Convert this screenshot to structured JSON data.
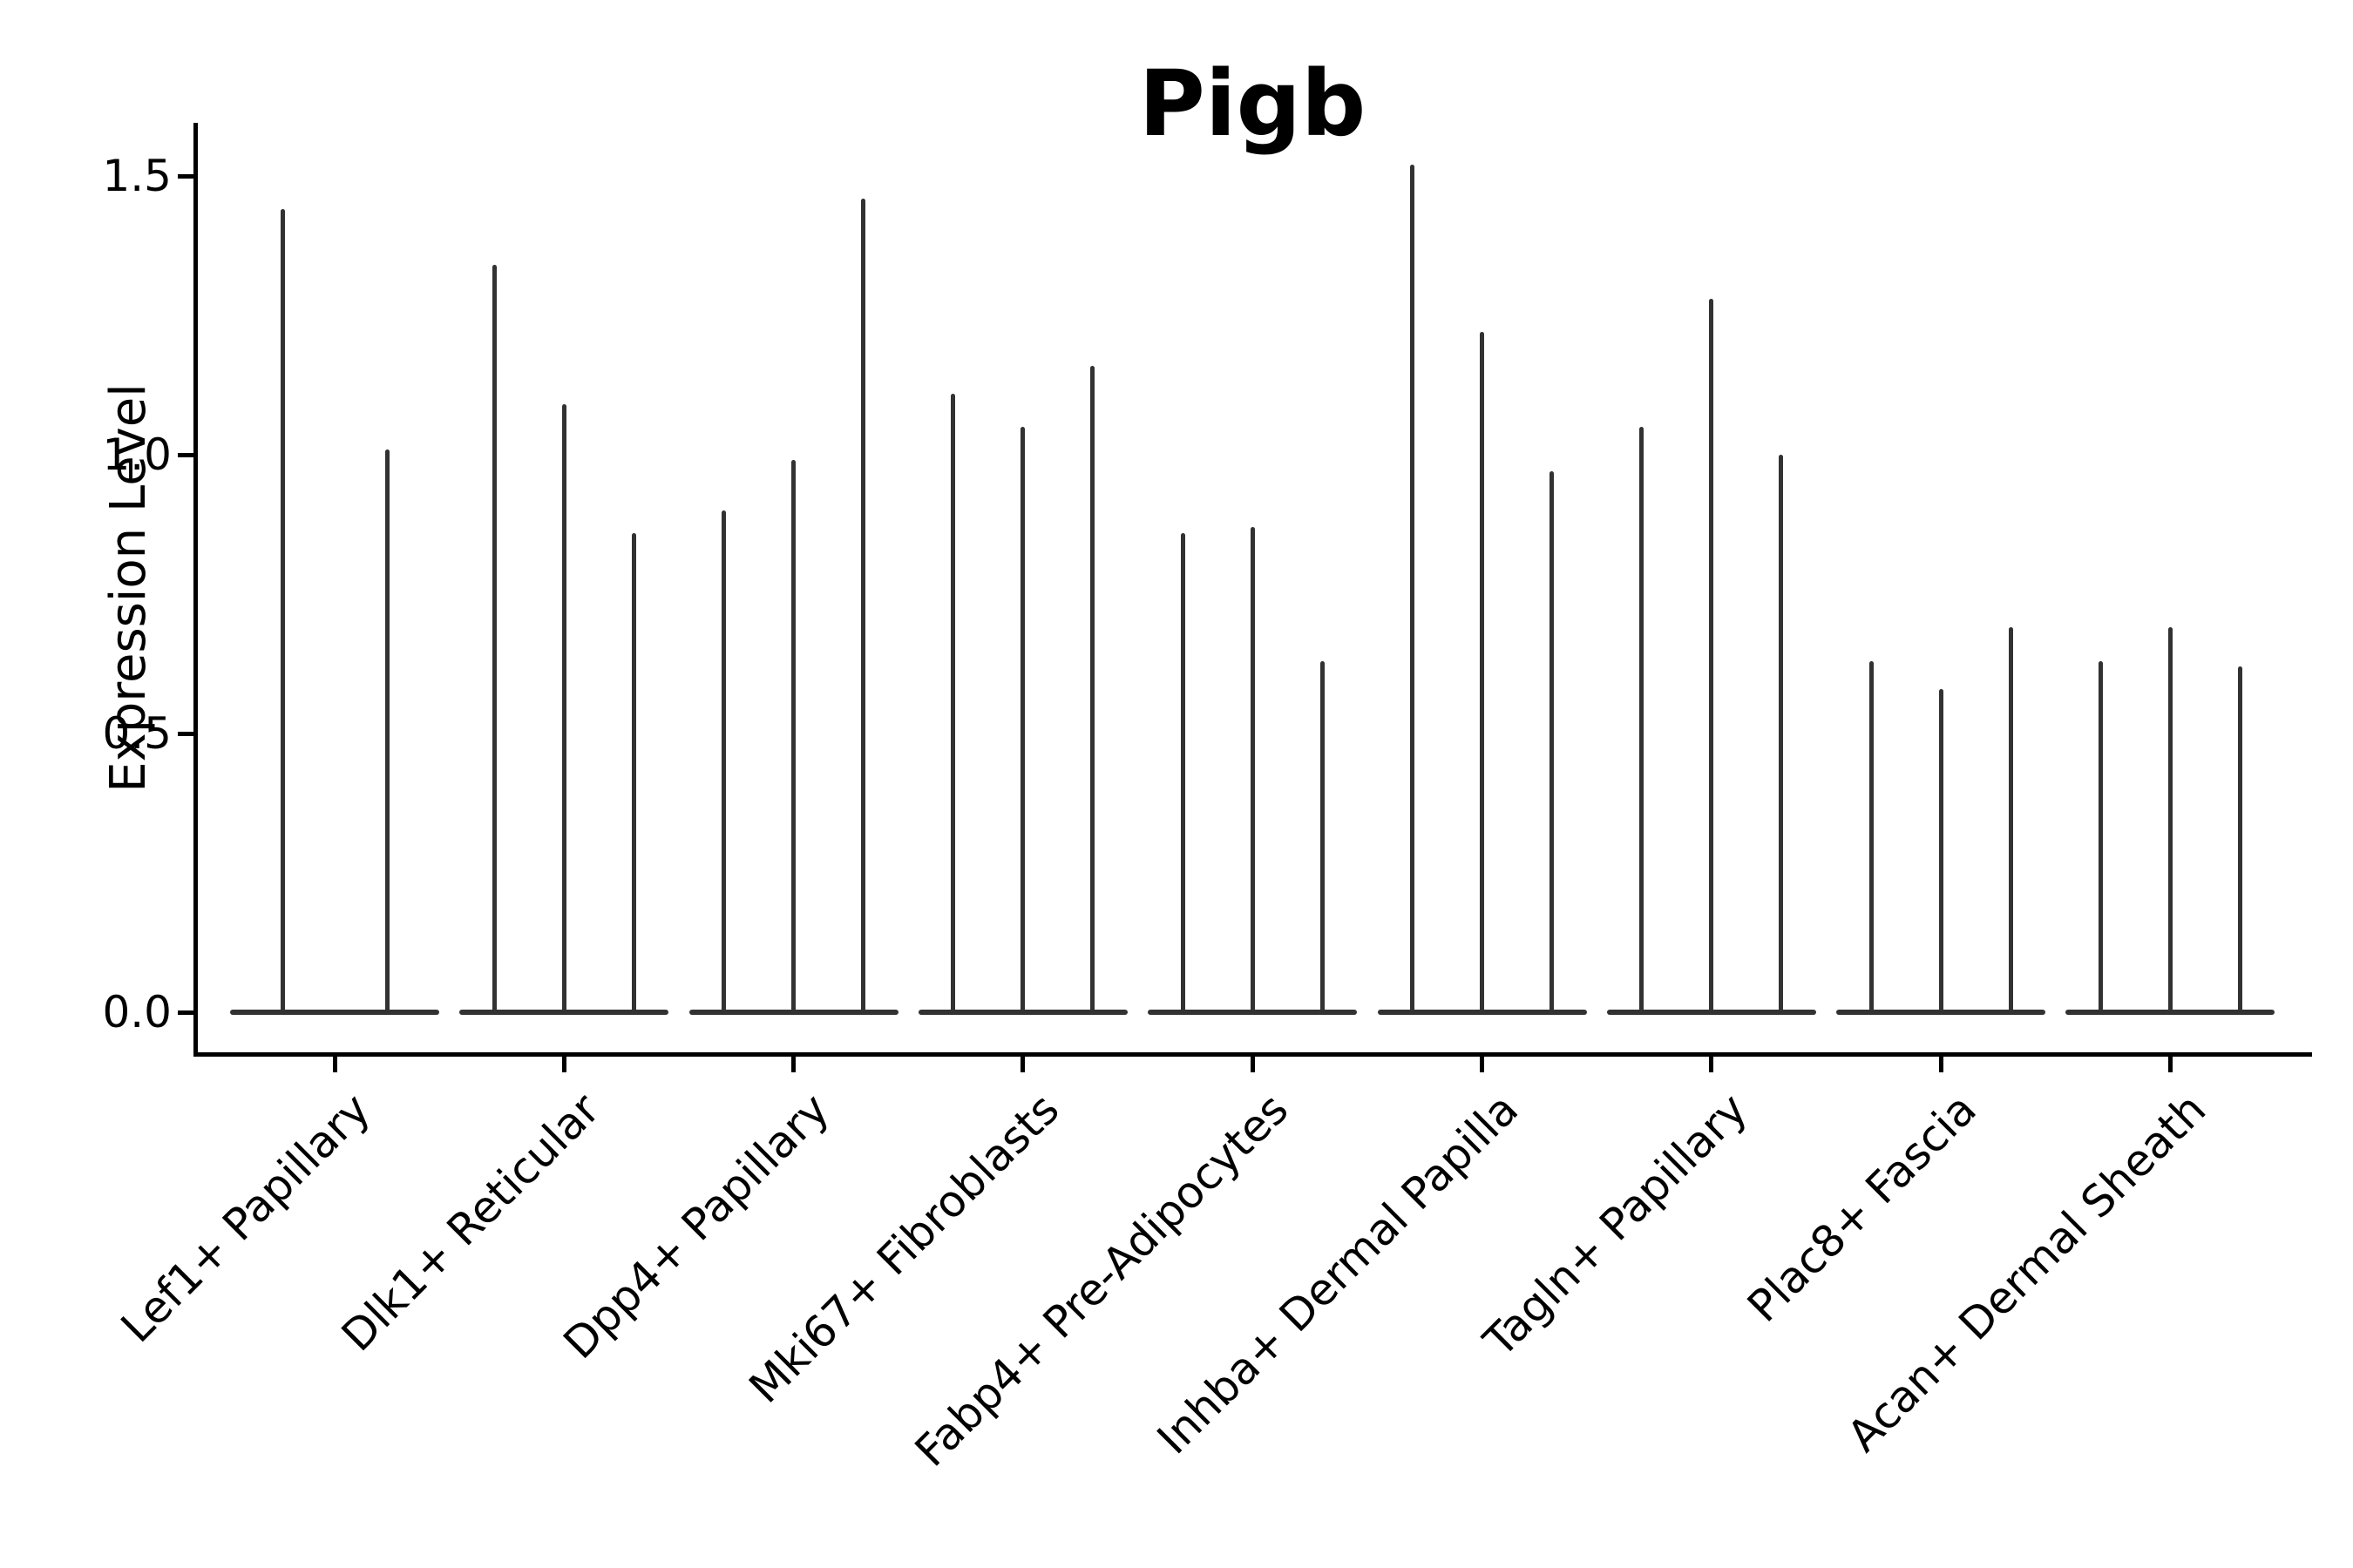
{
  "title": "Pigb",
  "ylabel": "Expression Level",
  "chart_data": {
    "type": "violin",
    "title": "Pigb",
    "xlabel": "",
    "ylabel": "Expression Level",
    "ylim": [
      -0.07,
      1.6
    ],
    "yticks": [
      0.0,
      0.5,
      1.0,
      1.5
    ],
    "ytick_labels": [
      "0.0",
      "0.5",
      "1.0",
      "1.5"
    ],
    "grid": false,
    "legend_position": "none",
    "background_color": "#ffffff",
    "violin_color": "#323232",
    "axis_color": "#000000",
    "categories": [
      "Lef1+ Papillary",
      "Dlk1+ Reticular",
      "Dpp4+ Papillary",
      "Mki67+ Fibroblasts",
      "Fabp4+ Pre-Adipocytes",
      "Inhba+ Dermal Papilla",
      "Tagln+ Papillary",
      "Plac8+ Fascia",
      "Acan+ Dermal Sheath"
    ],
    "groups": [
      {
        "label": "Lef1+ Papillary",
        "violin_max_values": [
          1.44,
          1.01
        ]
      },
      {
        "label": "Dlk1+ Reticular",
        "violin_max_values": [
          1.34,
          1.09,
          0.86
        ]
      },
      {
        "label": "Dpp4+ Papillary",
        "violin_max_values": [
          0.9,
          0.99,
          1.46
        ]
      },
      {
        "label": "Mki67+ Fibroblasts",
        "violin_max_values": [
          1.11,
          1.05,
          1.16
        ]
      },
      {
        "label": "Fabp4+ Pre-Adipocytes",
        "violin_max_values": [
          0.86,
          0.87,
          0.63
        ]
      },
      {
        "label": "Inhba+ Dermal Papilla",
        "violin_max_values": [
          1.52,
          1.22,
          0.97
        ]
      },
      {
        "label": "Tagln+ Papillary",
        "violin_max_values": [
          1.05,
          1.28,
          1.0
        ]
      },
      {
        "label": "Plac8+ Fascia",
        "violin_max_values": [
          0.63,
          0.58,
          0.69
        ]
      },
      {
        "label": "Acan+ Dermal Sheath",
        "violin_max_values": [
          0.63,
          0.69,
          0.62
        ]
      }
    ]
  }
}
